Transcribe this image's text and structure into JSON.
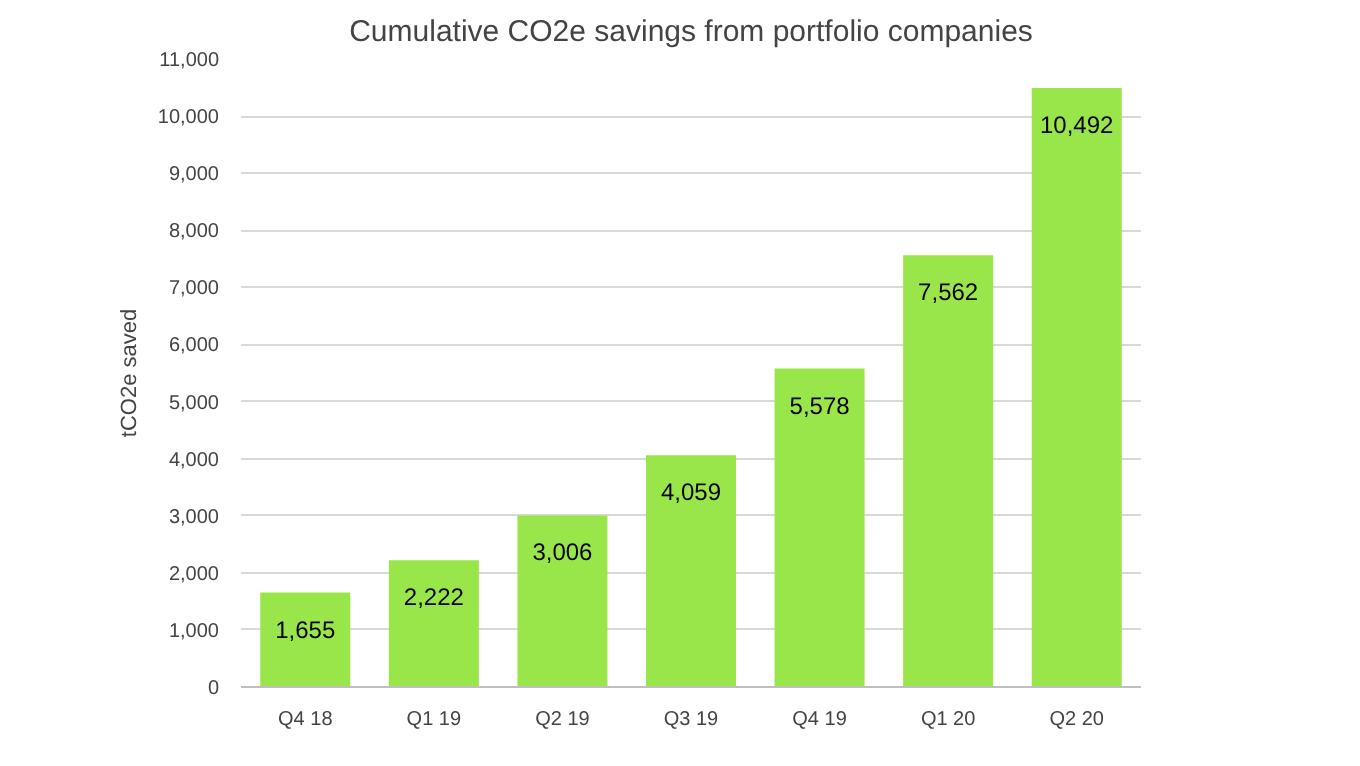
{
  "chart_data": {
    "type": "bar",
    "title": "Cumulative CO2e savings from portfolio companies",
    "ylabel": "tCO2e saved",
    "categories": [
      "Q4 18",
      "Q1 19",
      "Q2 19",
      "Q3 19",
      "Q4 19",
      "Q1 20",
      "Q2 20"
    ],
    "values": [
      1655,
      2222,
      3006,
      4059,
      5578,
      7562,
      10492
    ],
    "value_labels": [
      "1,655",
      "2,222",
      "3,006",
      "4,059",
      "5,578",
      "7,562",
      "10,492"
    ],
    "color": "#99e64a",
    "ylim": [
      0,
      11000
    ],
    "yticks": [
      {
        "value": 0,
        "label": "0"
      },
      {
        "value": 1000,
        "label": "1,000"
      },
      {
        "value": 2000,
        "label": "2,000"
      },
      {
        "value": 3000,
        "label": "3,000"
      },
      {
        "value": 4000,
        "label": "4,000"
      },
      {
        "value": 5000,
        "label": "5,000"
      },
      {
        "value": 6000,
        "label": "6,000"
      },
      {
        "value": 7000,
        "label": "7,000"
      },
      {
        "value": 8000,
        "label": "8,000"
      },
      {
        "value": 9000,
        "label": "9,000"
      },
      {
        "value": 10000,
        "label": "10,000"
      },
      {
        "value": 11000,
        "label": "11,000"
      }
    ],
    "grid": "y"
  }
}
